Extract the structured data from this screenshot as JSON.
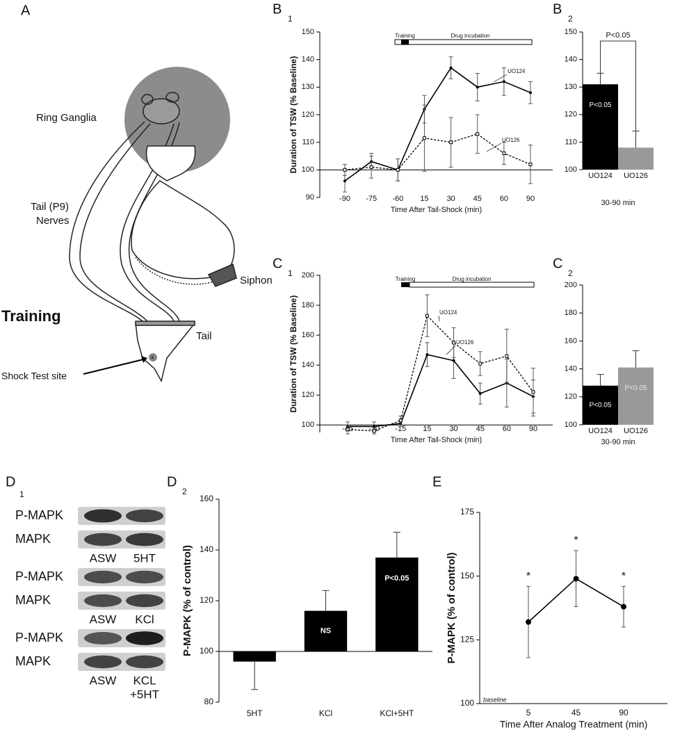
{
  "chart_data": [
    {
      "type": "line",
      "panel": "B",
      "panel_sub": "1",
      "x_label": "Time After Tail-Shock (min)",
      "y_label": "Duration of TSW (% Baseline)",
      "categories": [
        "-90",
        "-75",
        "-60",
        "15",
        "30",
        "45",
        "60",
        "90"
      ],
      "series": [
        {
          "name": "UO124",
          "color": "#000000",
          "line_style": "solid",
          "marker": "circle",
          "values": [
            96,
            103,
            100,
            122,
            137,
            130,
            132,
            128
          ],
          "errors": [
            4,
            3,
            4,
            5,
            4,
            5,
            5,
            4
          ]
        },
        {
          "name": "UO126",
          "color": "#000000",
          "line_style": "dashed",
          "marker": "square",
          "values": [
            100,
            101,
            100,
            111.5,
            110,
            113,
            106,
            102
          ],
          "errors": [
            2,
            4,
            4,
            12,
            9,
            7,
            4,
            7
          ]
        }
      ],
      "ylim": [
        90,
        150
      ],
      "yticks": [
        90,
        100,
        110,
        120,
        130,
        140,
        150
      ],
      "baseline": 100,
      "protocol": {
        "training": "Training",
        "incubation": "Drug incubation"
      }
    },
    {
      "type": "bar",
      "panel": "B",
      "panel_sub": "2",
      "x_label": "30-90 min",
      "categories": [
        "UO124",
        "UO126"
      ],
      "values": [
        131,
        108
      ],
      "errors": [
        4,
        6
      ],
      "colors": [
        "#000000",
        "#999999"
      ],
      "bar_labels": [
        "P<0.05",
        null
      ],
      "comparison": "P<0.05",
      "ylim": [
        100,
        150
      ],
      "yticks": [
        100,
        110,
        120,
        130,
        140,
        150
      ]
    },
    {
      "type": "line",
      "panel": "C",
      "panel_sub": "1",
      "x_label": "Time After Tail-Shock (min)",
      "y_label": "Duration of TSW (% Baseline)",
      "categories": [
        "-45",
        "-30",
        "-15",
        "15",
        "30",
        "45",
        "60",
        "90"
      ],
      "series": [
        {
          "name": "UO124",
          "color": "#000000",
          "line_style": "solid",
          "marker": "circle",
          "values": [
            99,
            99,
            101,
            147,
            143,
            121,
            128,
            119
          ],
          "errors": [
            3,
            3,
            2,
            8,
            12,
            7,
            16,
            11
          ]
        },
        {
          "name": "UO126",
          "color": "#000000",
          "line_style": "dashed",
          "marker": "square",
          "values": [
            97,
            96,
            103,
            173,
            155,
            141,
            146,
            122
          ],
          "errors": [
            3,
            2,
            3,
            14,
            10,
            8,
            18,
            16
          ]
        }
      ],
      "ylim": [
        95,
        200
      ],
      "yticks": [
        100,
        120,
        140,
        160,
        180,
        200
      ],
      "baseline": 100,
      "protocol": {
        "training": "Training",
        "incubation": "Drug incubation"
      }
    },
    {
      "type": "bar",
      "panel": "C",
      "panel_sub": "2",
      "x_label": "30-90 min",
      "categories": [
        "UO124",
        "UO126"
      ],
      "values": [
        128,
        141
      ],
      "errors": [
        8,
        12
      ],
      "colors": [
        "#000000",
        "#999999"
      ],
      "bar_labels": [
        "P<0.05",
        "P<0.05"
      ],
      "ylim": [
        100,
        200
      ],
      "yticks": [
        100,
        120,
        140,
        160,
        180,
        200
      ]
    },
    {
      "type": "bar",
      "panel": "D",
      "panel_sub": "2",
      "y_label": "P-MAPK (%  of control)",
      "categories": [
        "5HT",
        "KCl",
        "KCl+5HT"
      ],
      "values": [
        96,
        116,
        137
      ],
      "errors": [
        11,
        8,
        10
      ],
      "colors": [
        "#000000",
        "#000000",
        "#000000"
      ],
      "bar_labels": [
        null,
        "NS",
        "P<0.05"
      ],
      "ylim": [
        80,
        160
      ],
      "yticks": [
        80,
        100,
        120,
        140,
        160
      ],
      "baseline": 100
    },
    {
      "type": "line",
      "panel": "E",
      "x_label": "Time After Analog Treatment (min)",
      "y_label": "P-MAPK (% of control)",
      "categories": [
        "5",
        "45",
        "90"
      ],
      "series": [
        {
          "color": "#000000",
          "line_style": "solid",
          "marker": "circle",
          "values": [
            132,
            149,
            138
          ],
          "errors": [
            14,
            11,
            8
          ]
        }
      ],
      "point_notes": [
        "*",
        "*",
        "*"
      ],
      "note": "baseline",
      "ylim": [
        100,
        175
      ],
      "yticks": [
        100,
        125,
        150,
        175
      ]
    }
  ],
  "diagram": {
    "panel": "A",
    "ring": "Ring Ganglia",
    "nerves": [
      "Tail (P9)",
      "Nerves"
    ],
    "siphon": "Siphon",
    "training": "Training",
    "tail": "Tail",
    "site": "Shock Test site",
    "mark": "x"
  },
  "blot": {
    "panel": "D",
    "panel_sub": "1",
    "groups": [
      {
        "rows": [
          "P-MAPK",
          "MAPK"
        ],
        "lanes": [
          [
            "ASW"
          ],
          [
            "5HT"
          ]
        ]
      },
      {
        "rows": [
          "P-MAPK",
          "MAPK"
        ],
        "lanes": [
          [
            "ASW"
          ],
          [
            "KCl"
          ]
        ]
      },
      {
        "rows": [
          "P-MAPK",
          "MAPK"
        ],
        "lanes": [
          [
            "ASW"
          ],
          [
            "KCL",
            "+5HT"
          ]
        ]
      }
    ]
  }
}
